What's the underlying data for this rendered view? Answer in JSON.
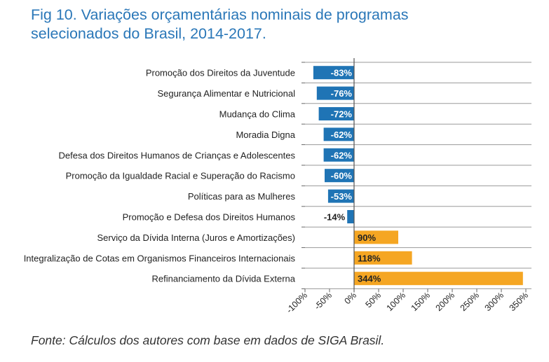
{
  "title_line1": "Fig 10.  Variações orçamentárias nominais de programas",
  "title_line2": "selecionados do Brasil, 2014-2017.",
  "source": "Fonte: Cálculos dos autores com base em dados de SIGA Brasil.",
  "colors": {
    "negative": "#1f74b5",
    "positive": "#f5a623",
    "title": "#2a77b8"
  },
  "chart_data": {
    "type": "bar",
    "orientation": "horizontal",
    "categories": [
      "Promoção dos Direitos da Juventude",
      "Segurança Alimentar e Nutricional",
      "Mudança do Clima",
      "Moradia Digna",
      "Defesa dos Direitos Humanos de Crianças e Adolescentes",
      "Promoção da Igualdade Racial e Superação do Racismo",
      "Políticas para as Mulheres",
      "Promoção e Defesa dos Direitos Humanos",
      "Serviço da Dívida Interna (Juros e Amortizações)",
      "Integralização de Cotas em Organismos Financeiros Internacionais",
      "Refinanciamento da Dívida Externa"
    ],
    "values": [
      -83,
      -76,
      -72,
      -62,
      -62,
      -60,
      -53,
      -14,
      90,
      118,
      344
    ],
    "data_labels": [
      "-83%",
      "-76%",
      "-72%",
      "-62%",
      "-62%",
      "-60%",
      "-53%",
      "-14%",
      "90%",
      "118%",
      "344%"
    ],
    "xlim": [
      -100,
      350
    ],
    "xticks": [
      -100,
      -50,
      0,
      50,
      100,
      150,
      200,
      250,
      300,
      350
    ],
    "xtick_labels": [
      "-100%",
      "-50%",
      "0%",
      "50%",
      "100%",
      "150%",
      "200%",
      "250%",
      "300%",
      "350%"
    ],
    "grid": "horizontal",
    "legend": "none"
  }
}
